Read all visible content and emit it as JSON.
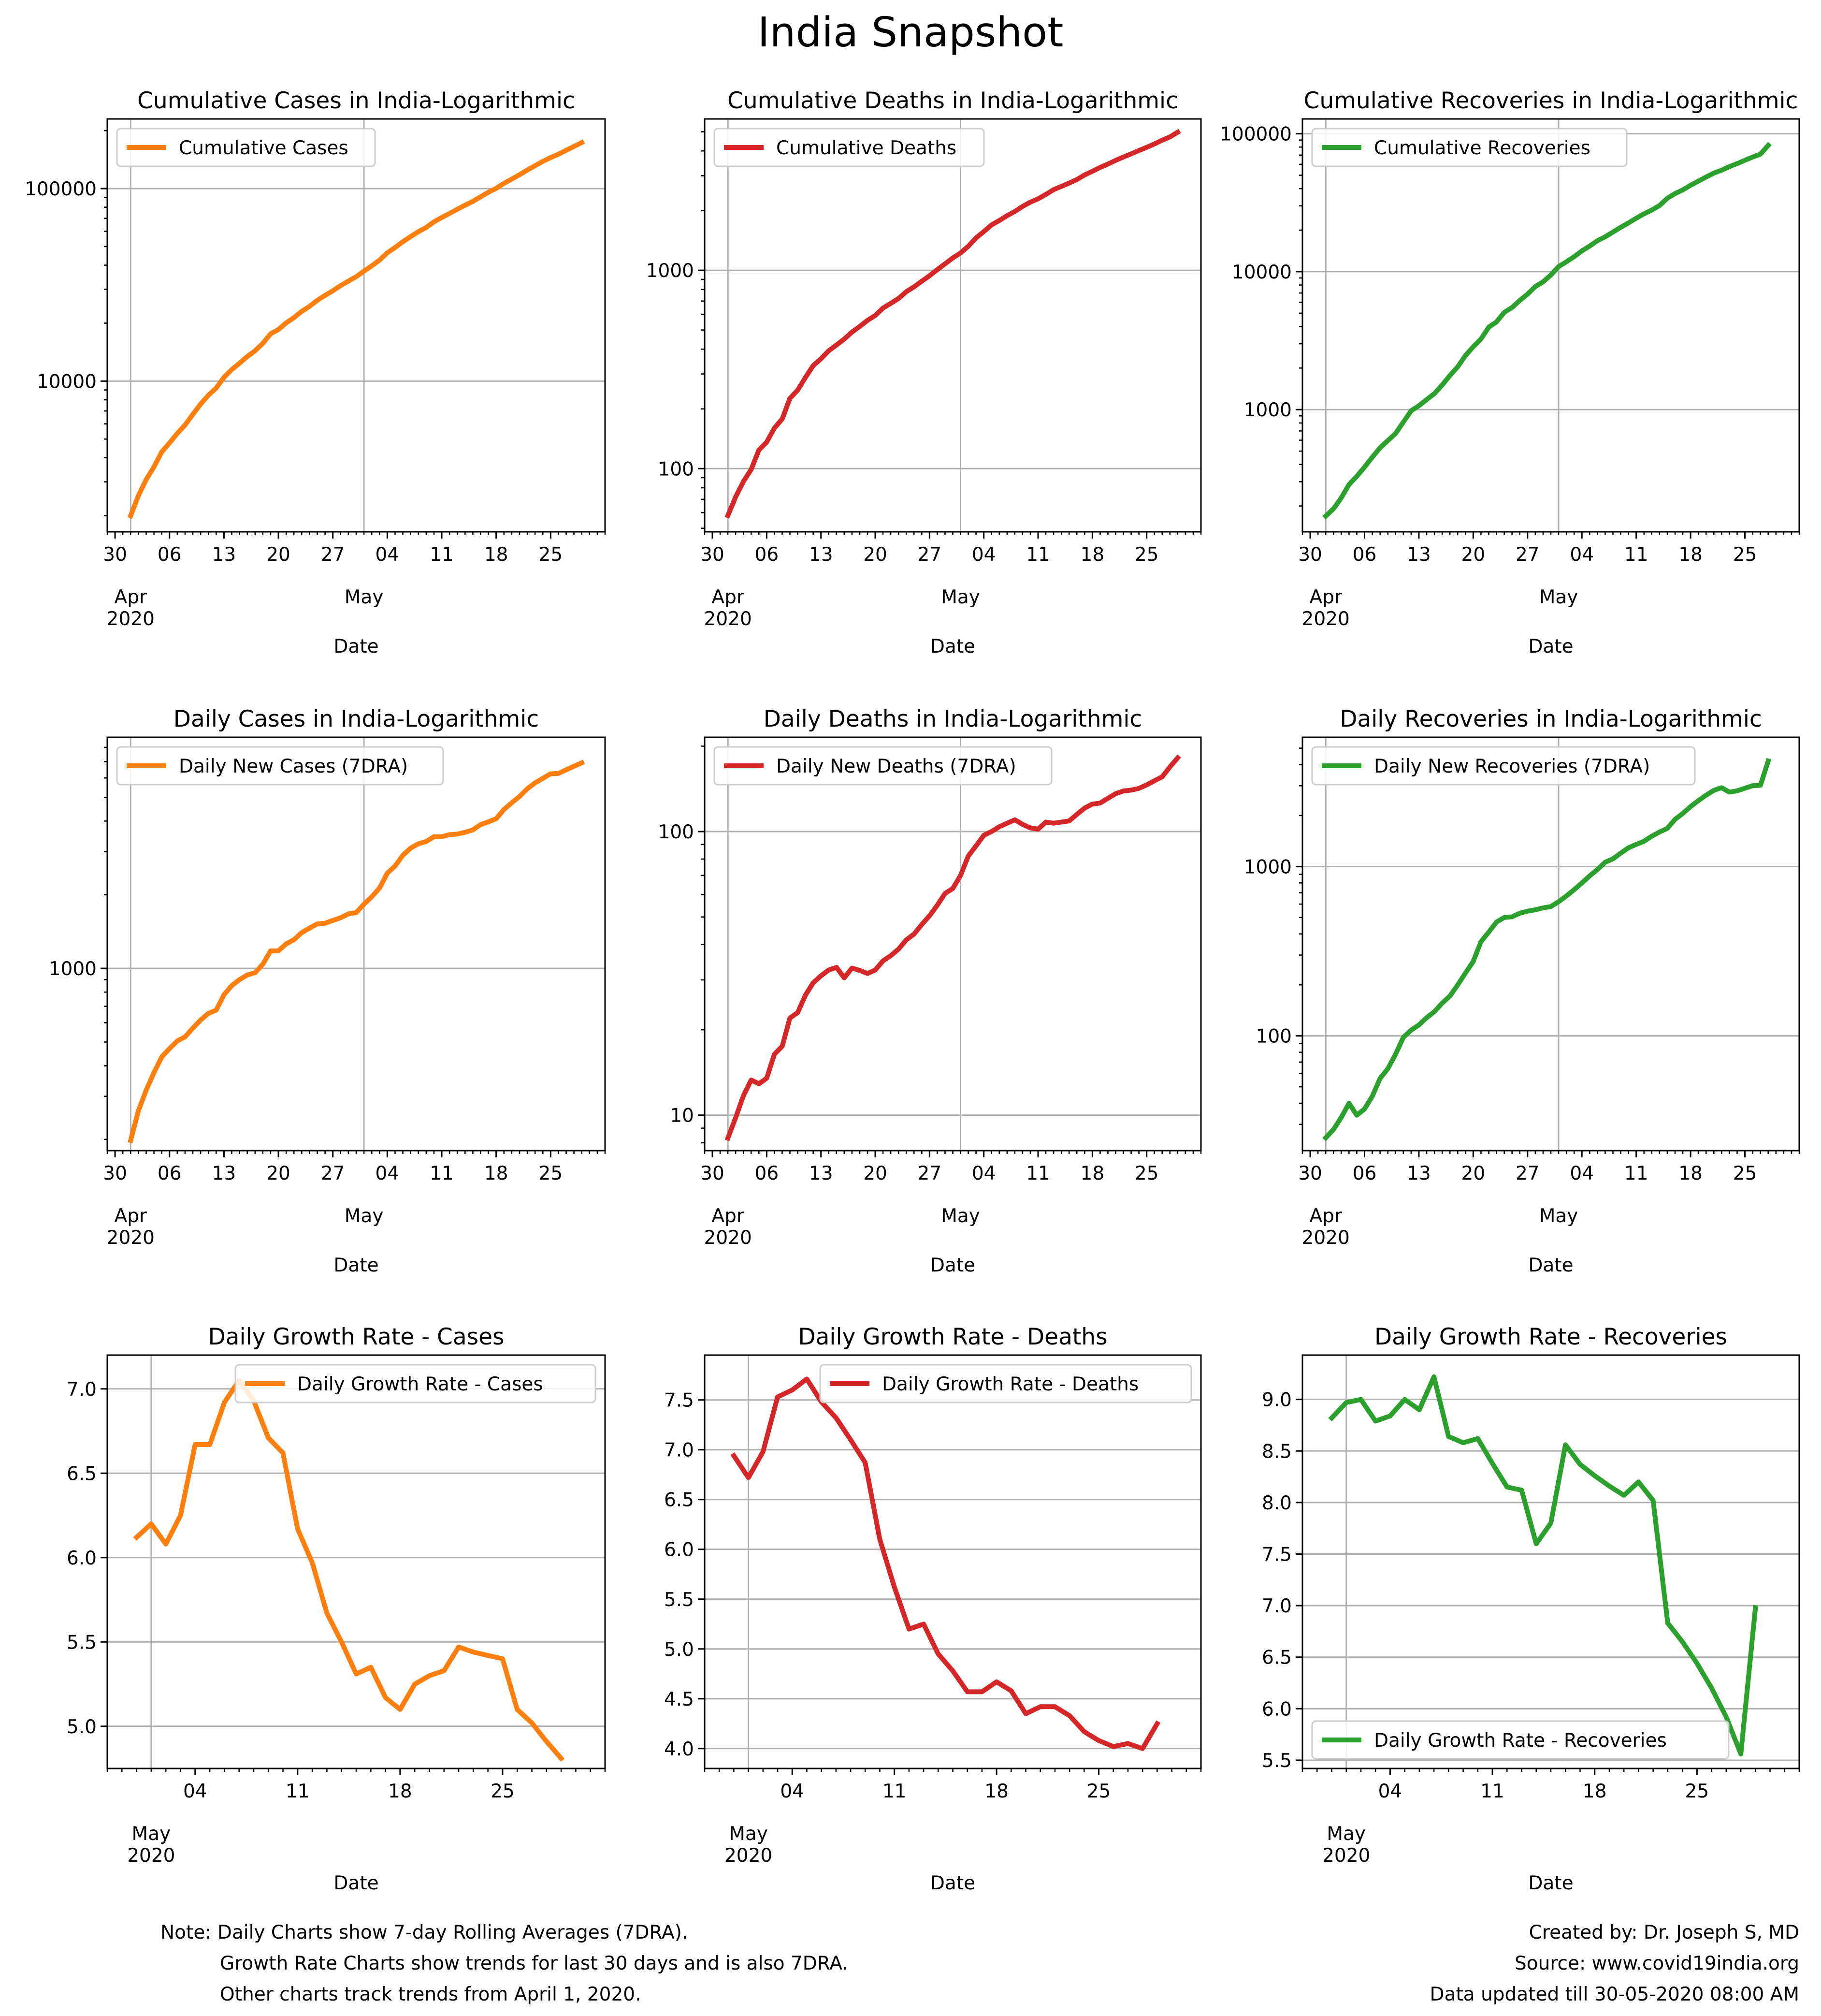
{
  "title": "India Snapshot",
  "colors": {
    "cases": "#ff7f0e",
    "deaths": "#d62728",
    "recoveries": "#2ca02c",
    "grid": "#b0b0b0"
  },
  "footer": {
    "note_lines": [
      "Note: Daily Charts show 7-day Rolling Averages (7DRA).",
      "Growth Rate Charts show trends for last 30 days and is also 7DRA.",
      "Other charts track trends from April 1, 2020."
    ],
    "credit_lines": [
      "Created by: Dr. Joseph S, MD",
      "Source: www.covid19india.org",
      "Data updated till 30-05-2020 08:00 AM"
    ]
  },
  "chart_data": [
    {
      "type": "line",
      "id": "cum-cases",
      "title": "Cumulative Cases in India-Logarithmic",
      "xlabel": "Date",
      "ylabel": "",
      "yscale": "log",
      "color": "#ff7f0e",
      "legend": "Cumulative Cases",
      "legend_position": "upper-left",
      "xlim": [
        "2020-03-29",
        "2020-06-01"
      ],
      "ylim": [
        1650,
        230000
      ],
      "yticks": [
        {
          "v": 10000,
          "label": "10000"
        },
        {
          "v": 100000,
          "label": "100000"
        }
      ],
      "xaxis_kind": "april",
      "x_start": "2020-04-01",
      "y": [
        1998,
        2543,
        3082,
        3588,
        4289,
        4778,
        5351,
        5916,
        6725,
        7600,
        8447,
        9205,
        10453,
        11487,
        12380,
        13430,
        14378,
        15722,
        17615,
        18539,
        20080,
        21370,
        23039,
        24447,
        26283,
        27890,
        29451,
        31324,
        33062,
        34863,
        37257,
        39699,
        42505,
        46433,
        49400,
        52987,
        56351,
        59695,
        62808,
        67161,
        70756,
        74292,
        78055,
        81970,
        85784,
        90648,
        95698,
        100328,
        106475,
        112028,
        117998,
        124794,
        131423,
        138536,
        144950,
        150793,
        158086,
        165386,
        173491
      ]
    },
    {
      "type": "line",
      "id": "cum-deaths",
      "title": "Cumulative Deaths in India-Logarithmic",
      "xlabel": "Date",
      "ylabel": "",
      "yscale": "log",
      "color": "#d62728",
      "legend": "Cumulative Deaths",
      "legend_position": "upper-left",
      "xlim": [
        "2020-03-29",
        "2020-06-01"
      ],
      "ylim": [
        48,
        5800
      ],
      "yticks": [
        {
          "v": 100,
          "label": "100"
        },
        {
          "v": 1000,
          "label": "1000"
        }
      ],
      "xaxis_kind": "april",
      "x_start": "2020-04-01",
      "y": [
        58,
        72,
        86,
        99,
        124,
        136,
        160,
        178,
        226,
        249,
        288,
        331,
        358,
        393,
        420,
        450,
        488,
        521,
        559,
        592,
        645,
        681,
        721,
        780,
        825,
        881,
        939,
        1008,
        1079,
        1154,
        1223,
        1323,
        1457,
        1568,
        1694,
        1783,
        1886,
        1981,
        2101,
        2206,
        2293,
        2415,
        2551,
        2649,
        2753,
        2871,
        3025,
        3156,
        3302,
        3434,
        3584,
        3726,
        3868,
        4021,
        4172,
        4337,
        4531,
        4706,
        4971
      ]
    },
    {
      "type": "line",
      "id": "cum-recoveries",
      "title": "Cumulative Recoveries in India-Logarithmic",
      "xlabel": "Date",
      "ylabel": "",
      "yscale": "log",
      "color": "#2ca02c",
      "legend": "Cumulative Recoveries",
      "legend_position": "upper-left",
      "xlim": [
        "2020-03-29",
        "2020-06-01"
      ],
      "ylim": [
        130,
        128000
      ],
      "yticks": [
        {
          "v": 1000,
          "label": "1000"
        },
        {
          "v": 10000,
          "label": "10000"
        },
        {
          "v": 100000,
          "label": "100000"
        }
      ],
      "xaxis_kind": "april",
      "x_start": "2020-04-01",
      "y": [
        169,
        191,
        229,
        286,
        328,
        383,
        452,
        528,
        596,
        671,
        812,
        980,
        1066,
        1181,
        1306,
        1507,
        1767,
        2042,
        2463,
        2854,
        3252,
        3960,
        4325,
        5063,
        5498,
        6185,
        6869,
        7797,
        8437,
        9459,
        10886,
        11775,
        12847,
        14142,
        15331,
        16776,
        17887,
        19358,
        20969,
        22550,
        24386,
        26271,
        27969,
        30152,
        33989,
        36824,
        39174,
        42309,
        45300,
        48553,
        51824,
        54385,
        57692,
        60706,
        64277,
        67691,
        71106,
        82370
      ]
    },
    {
      "type": "line",
      "id": "daily-cases",
      "title": "Daily Cases in India-Logarithmic",
      "xlabel": "Date",
      "ylabel": "",
      "yscale": "log",
      "color": "#ff7f0e",
      "legend": "Daily New Cases (7DRA)",
      "legend_position": "upper-left",
      "xlim": [
        "2020-03-29",
        "2020-06-01"
      ],
      "ylim": [
        180,
        8800
      ],
      "yticks": [
        {
          "v": 1000,
          "label": "1000"
        }
      ],
      "xaxis_kind": "april",
      "x_start": "2020-04-01",
      "y": [
        198,
        262,
        318,
        375,
        435,
        470,
        505,
        525,
        570,
        615,
        655,
        675,
        780,
        850,
        900,
        940,
        960,
        1040,
        1180,
        1180,
        1260,
        1310,
        1400,
        1460,
        1520,
        1530,
        1570,
        1610,
        1670,
        1690,
        1830,
        1960,
        2130,
        2450,
        2620,
        2900,
        3100,
        3230,
        3300,
        3450,
        3450,
        3520,
        3540,
        3600,
        3680,
        3870,
        3970,
        4090,
        4460,
        4750,
        5040,
        5420,
        5730,
        5980,
        6240,
        6260,
        6480,
        6700,
        6920
      ]
    },
    {
      "type": "line",
      "id": "daily-deaths",
      "title": "Daily Deaths in India-Logarithmic",
      "xlabel": "Date",
      "ylabel": "",
      "yscale": "log",
      "color": "#d62728",
      "legend": "Daily New Deaths (7DRA)",
      "legend_position": "upper-left",
      "xlim": [
        "2020-03-29",
        "2020-06-01"
      ],
      "ylim": [
        7.5,
        215
      ],
      "yticks": [
        {
          "v": 10,
          "label": "10"
        },
        {
          "v": 100,
          "label": "100"
        }
      ],
      "xaxis_kind": "april",
      "x_start": "2020-04-01",
      "y": [
        8.3,
        9.8,
        11.7,
        13.3,
        12.9,
        13.5,
        16.4,
        17.5,
        22,
        23,
        26.5,
        29.3,
        31,
        32.5,
        33.2,
        30.5,
        33,
        32.4,
        31.6,
        32.5,
        35,
        36.5,
        38.5,
        41.5,
        43.5,
        47,
        50.5,
        55,
        60.5,
        63,
        70,
        82,
        89,
        97,
        100,
        104,
        107,
        110,
        106,
        103,
        102,
        108,
        107,
        108,
        109,
        115,
        121,
        125,
        126,
        131,
        136,
        139,
        140,
        142,
        146,
        151,
        156,
        169,
        182
      ]
    },
    {
      "type": "line",
      "id": "daily-recoveries",
      "title": "Daily Recoveries in India-Logarithmic",
      "xlabel": "Date",
      "ylabel": "",
      "yscale": "log",
      "color": "#2ca02c",
      "legend": "Daily New Recoveries (7DRA)",
      "legend_position": "upper-left",
      "xlim": [
        "2020-03-29",
        "2020-06-01"
      ],
      "ylim": [
        21,
        5800
      ],
      "yticks": [
        {
          "v": 100,
          "label": "100"
        },
        {
          "v": 1000,
          "label": "1000"
        }
      ],
      "xaxis_kind": "april",
      "x_start": "2020-04-01",
      "y": [
        25,
        28,
        33,
        40,
        34,
        37,
        44,
        56,
        64,
        78,
        98,
        108,
        116,
        128,
        139,
        156,
        172,
        200,
        235,
        275,
        360,
        410,
        470,
        500,
        505,
        530,
        545,
        555,
        570,
        580,
        620,
        670,
        730,
        800,
        880,
        960,
        1060,
        1110,
        1200,
        1290,
        1350,
        1410,
        1510,
        1600,
        1680,
        1900,
        2060,
        2260,
        2450,
        2640,
        2820,
        2920,
        2750,
        2800,
        2900,
        3000,
        3020,
        4200
      ]
    },
    {
      "type": "line",
      "id": "growth-cases",
      "title": "Daily Growth Rate - Cases",
      "xlabel": "Date",
      "ylabel": "",
      "yscale": "linear",
      "color": "#ff7f0e",
      "legend": "Daily Growth Rate - Cases",
      "legend_position": "upper-right",
      "xlim": [
        "2020-04-28",
        "2020-06-01"
      ],
      "ylim": [
        4.75,
        7.2
      ],
      "yticks": [
        {
          "v": 5.0,
          "label": "5.0"
        },
        {
          "v": 5.5,
          "label": "5.5"
        },
        {
          "v": 6.0,
          "label": "6.0"
        },
        {
          "v": 6.5,
          "label": "6.5"
        },
        {
          "v": 7.0,
          "label": "7.0"
        }
      ],
      "xaxis_kind": "may",
      "x_start": "2020-04-30",
      "y": [
        6.12,
        6.2,
        6.08,
        6.25,
        6.67,
        6.67,
        6.92,
        7.05,
        6.93,
        6.71,
        6.62,
        6.17,
        5.97,
        5.67,
        5.5,
        5.31,
        5.35,
        5.17,
        5.1,
        5.25,
        5.3,
        5.33,
        5.47,
        5.44,
        5.42,
        5.4,
        5.1,
        5.02,
        4.91,
        4.81
      ]
    },
    {
      "type": "line",
      "id": "growth-deaths",
      "title": "Daily Growth Rate - Deaths",
      "xlabel": "Date",
      "ylabel": "",
      "yscale": "linear",
      "color": "#d62728",
      "legend": "Daily Growth Rate - Deaths",
      "legend_position": "upper-right",
      "xlim": [
        "2020-04-28",
        "2020-06-01"
      ],
      "ylim": [
        3.8,
        7.95
      ],
      "yticks": [
        {
          "v": 4.0,
          "label": "4.0"
        },
        {
          "v": 4.5,
          "label": "4.5"
        },
        {
          "v": 5.0,
          "label": "5.0"
        },
        {
          "v": 5.5,
          "label": "5.5"
        },
        {
          "v": 6.0,
          "label": "6.0"
        },
        {
          "v": 6.5,
          "label": "6.5"
        },
        {
          "v": 7.0,
          "label": "7.0"
        },
        {
          "v": 7.5,
          "label": "7.5"
        }
      ],
      "xaxis_kind": "may",
      "x_start": "2020-04-30",
      "y": [
        6.94,
        6.72,
        6.98,
        7.53,
        7.6,
        7.71,
        7.48,
        7.32,
        7.1,
        6.87,
        6.1,
        5.62,
        5.2,
        5.25,
        4.95,
        4.78,
        4.57,
        4.57,
        4.67,
        4.58,
        4.35,
        4.42,
        4.42,
        4.33,
        4.17,
        4.08,
        4.02,
        4.05,
        4.0,
        4.25
      ]
    },
    {
      "type": "line",
      "id": "growth-recoveries",
      "title": "Daily Growth Rate - Recoveries",
      "xlabel": "Date",
      "ylabel": "",
      "yscale": "linear",
      "color": "#2ca02c",
      "legend": "Daily Growth Rate - Recoveries",
      "legend_position": "lower-left",
      "xlim": [
        "2020-04-28",
        "2020-06-01"
      ],
      "ylim": [
        5.42,
        9.43
      ],
      "yticks": [
        {
          "v": 5.5,
          "label": "5.5"
        },
        {
          "v": 6.0,
          "label": "6.0"
        },
        {
          "v": 6.5,
          "label": "6.5"
        },
        {
          "v": 7.0,
          "label": "7.0"
        },
        {
          "v": 7.5,
          "label": "7.5"
        },
        {
          "v": 8.0,
          "label": "8.0"
        },
        {
          "v": 8.5,
          "label": "8.5"
        },
        {
          "v": 9.0,
          "label": "9.0"
        }
      ],
      "xaxis_kind": "may",
      "x_start": "2020-04-30",
      "y": [
        8.82,
        8.97,
        9.0,
        8.79,
        8.84,
        9.0,
        8.9,
        9.22,
        8.64,
        8.58,
        8.62,
        8.38,
        8.15,
        8.12,
        7.6,
        7.8,
        8.56,
        8.37,
        8.26,
        8.16,
        8.07,
        8.2,
        8.02,
        6.83,
        6.65,
        6.44,
        6.2,
        5.92,
        5.56,
        6.98
      ]
    }
  ],
  "axes_text": {
    "april": {
      "ticks": [
        {
          "d": "2020-03-30",
          "label": "30"
        },
        {
          "d": "2020-04-06",
          "label": "06"
        },
        {
          "d": "2020-04-13",
          "label": "13"
        },
        {
          "d": "2020-04-20",
          "label": "20"
        },
        {
          "d": "2020-04-27",
          "label": "27"
        },
        {
          "d": "2020-05-04",
          "label": "04"
        },
        {
          "d": "2020-05-11",
          "label": "11"
        },
        {
          "d": "2020-05-18",
          "label": "18"
        },
        {
          "d": "2020-05-25",
          "label": "25"
        }
      ],
      "months": [
        {
          "d": "2020-04-01",
          "label": "Apr",
          "year": "2020"
        },
        {
          "d": "2020-05-01",
          "label": "May",
          "year": ""
        }
      ]
    },
    "may": {
      "ticks": [
        {
          "d": "2020-05-04",
          "label": "04"
        },
        {
          "d": "2020-05-11",
          "label": "11"
        },
        {
          "d": "2020-05-18",
          "label": "18"
        },
        {
          "d": "2020-05-25",
          "label": "25"
        }
      ],
      "months": [
        {
          "d": "2020-05-01",
          "label": "May",
          "year": "2020"
        }
      ]
    }
  }
}
